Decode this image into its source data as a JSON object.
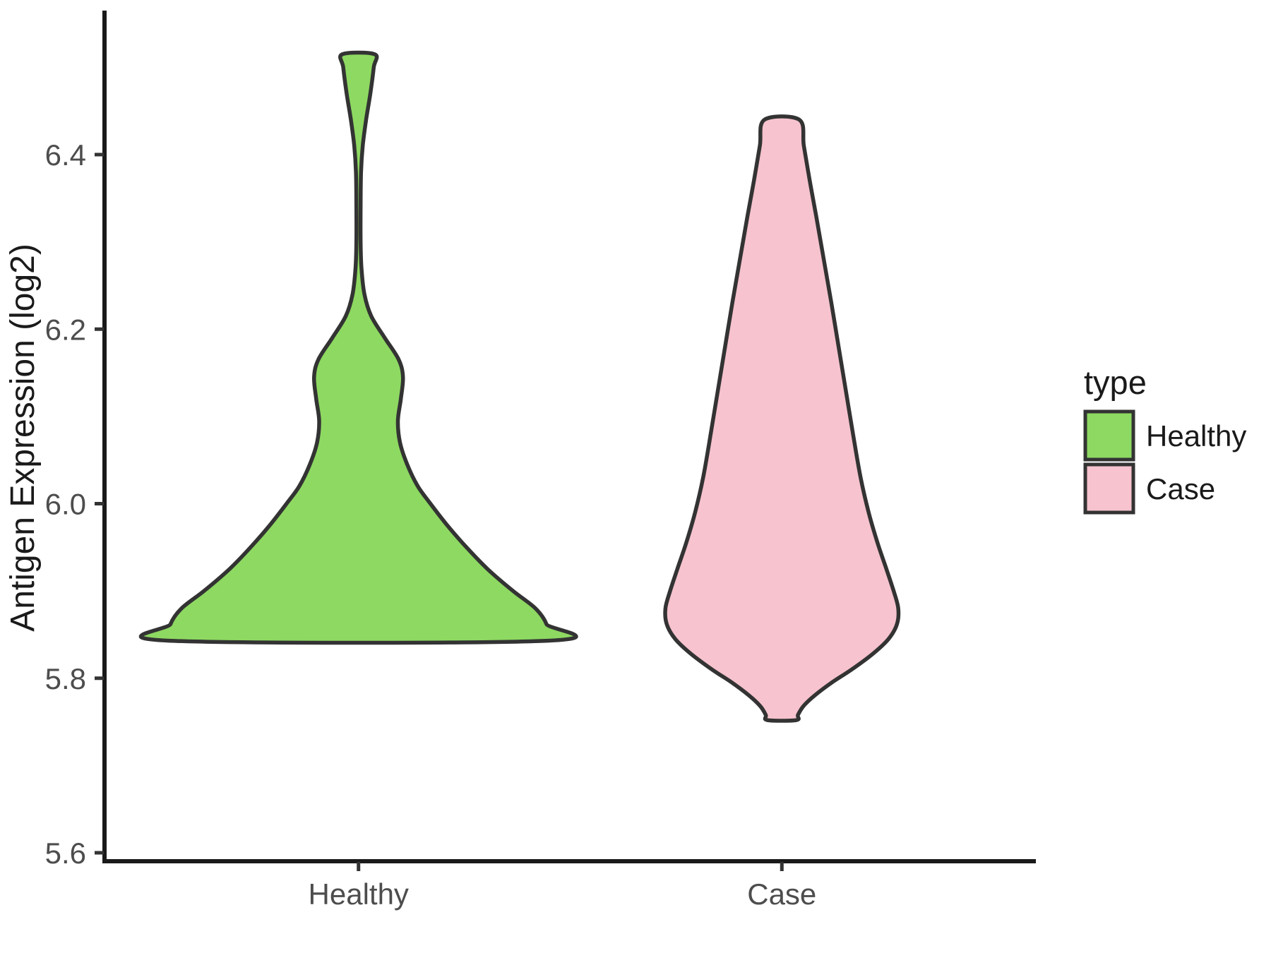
{
  "y_axis": {
    "title": "Antigen Expression (log2)",
    "tick_labels": [
      "5.6",
      "5.8",
      "6.0",
      "6.2",
      "6.4"
    ],
    "tick_values": [
      5.6,
      5.8,
      6.0,
      6.2,
      6.4
    ]
  },
  "x_axis": {
    "categories": [
      "Healthy",
      "Case"
    ]
  },
  "legend": {
    "title": "type",
    "entries": [
      {
        "label": "Healthy",
        "color": "#8ed962"
      },
      {
        "label": "Case",
        "color": "#f6c3ce"
      }
    ]
  },
  "colors": {
    "outline": "#333333",
    "axis_line": "#1a1a1a",
    "axis_text": "#4d4d4d",
    "background": "#ffffff"
  },
  "chart_data": {
    "type": "violin",
    "title": "",
    "xlabel": "",
    "ylabel": "Antigen Expression (log2)",
    "categories": [
      "Healthy",
      "Case"
    ],
    "legend_title": "type",
    "legend_position": "right",
    "grid": false,
    "ylim": [
      5.59,
      6.56
    ],
    "y_ticks": [
      5.6,
      5.8,
      6.0,
      6.2,
      6.4
    ],
    "series": [
      {
        "name": "Healthy",
        "fill": "#8ed962",
        "outline": "#333333",
        "x_position": 1,
        "min_value": 5.843,
        "max_value": 6.515,
        "profile": [
          [
            6.515,
            0.038
          ],
          [
            6.5,
            0.036
          ],
          [
            6.47,
            0.028
          ],
          [
            6.44,
            0.018
          ],
          [
            6.41,
            0.01
          ],
          [
            6.38,
            0.006
          ],
          [
            6.34,
            0.005
          ],
          [
            6.3,
            0.005
          ],
          [
            6.27,
            0.007
          ],
          [
            6.24,
            0.014
          ],
          [
            6.215,
            0.03
          ],
          [
            6.19,
            0.062
          ],
          [
            6.165,
            0.095
          ],
          [
            6.145,
            0.105
          ],
          [
            6.12,
            0.1
          ],
          [
            6.095,
            0.093
          ],
          [
            6.07,
            0.098
          ],
          [
            6.045,
            0.115
          ],
          [
            6.02,
            0.14
          ],
          [
            6.0,
            0.17
          ],
          [
            5.975,
            0.21
          ],
          [
            5.95,
            0.255
          ],
          [
            5.925,
            0.305
          ],
          [
            5.9,
            0.365
          ],
          [
            5.88,
            0.418
          ],
          [
            5.862,
            0.444
          ],
          [
            5.843,
            0.448
          ]
        ]
      },
      {
        "name": "Case",
        "fill": "#f6c3ce",
        "outline": "#333333",
        "x_position": 2,
        "min_value": 5.752,
        "max_value": 6.44,
        "profile": [
          [
            6.44,
            0.041
          ],
          [
            6.41,
            0.052
          ],
          [
            6.37,
            0.066
          ],
          [
            6.33,
            0.081
          ],
          [
            6.28,
            0.099
          ],
          [
            6.23,
            0.117
          ],
          [
            6.18,
            0.134
          ],
          [
            6.13,
            0.151
          ],
          [
            6.08,
            0.168
          ],
          [
            6.03,
            0.186
          ],
          [
            5.99,
            0.205
          ],
          [
            5.955,
            0.226
          ],
          [
            5.925,
            0.247
          ],
          [
            5.9,
            0.264
          ],
          [
            5.88,
            0.275
          ],
          [
            5.862,
            0.272
          ],
          [
            5.845,
            0.252
          ],
          [
            5.828,
            0.215
          ],
          [
            5.81,
            0.165
          ],
          [
            5.795,
            0.118
          ],
          [
            5.78,
            0.077
          ],
          [
            5.768,
            0.051
          ],
          [
            5.758,
            0.038
          ],
          [
            5.752,
            0.034
          ]
        ]
      }
    ]
  }
}
